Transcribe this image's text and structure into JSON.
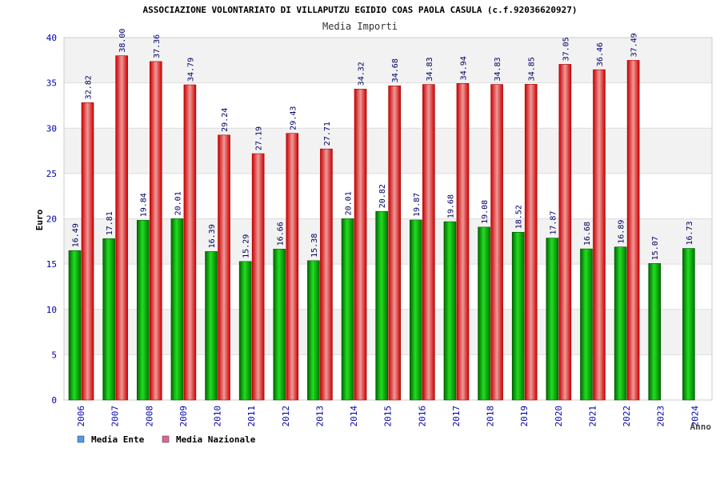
{
  "chart_data": {
    "type": "bar",
    "title": "ASSOCIAZIONE VOLONTARIATO DI VILLAPUTZU EGIDIO COAS PAOLA CASULA (c.f.92036620927)",
    "subtitle": "Media Importi",
    "xlabel": "Anno",
    "ylabel": "Euro",
    "ylim": [
      0,
      40
    ],
    "yticks": [
      "0",
      "5",
      "10",
      "15",
      "20",
      "25",
      "30",
      "35",
      "40"
    ],
    "grid": true,
    "legend_position": "bottom-left",
    "categories": [
      "2006",
      "2007",
      "2008",
      "2009",
      "2010",
      "2011",
      "2012",
      "2013",
      "2014",
      "2015",
      "2016",
      "2017",
      "2018",
      "2019",
      "2020",
      "2021",
      "2022",
      "2023",
      "2024"
    ],
    "series": [
      {
        "name": "Media Ente",
        "color": "#00aa00",
        "legend_color": "#5599ee",
        "values": [
          16.49,
          17.81,
          19.84,
          20.01,
          16.39,
          15.29,
          16.66,
          15.38,
          20.01,
          20.82,
          19.87,
          19.68,
          19.08,
          18.52,
          17.87,
          16.68,
          16.89,
          15.07,
          16.73
        ],
        "labels": [
          "16.49",
          "17.81",
          "19.84",
          "20.01",
          "16.39",
          "15.29",
          "16.66",
          "15.38",
          "20.01",
          "20.82",
          "19.87",
          "19.68",
          "19.08",
          "18.52",
          "17.87",
          "16.68",
          "16.89",
          "15.07",
          "16.73"
        ]
      },
      {
        "name": "Media Nazionale",
        "color": "#ee1111",
        "legend_color": "#dd6699",
        "values": [
          32.82,
          38.0,
          37.36,
          34.79,
          29.24,
          27.19,
          29.43,
          27.71,
          34.32,
          34.68,
          34.83,
          34.94,
          34.83,
          34.85,
          37.05,
          36.46,
          37.49,
          null,
          null
        ],
        "labels": [
          "32.82",
          "38.00",
          "37.36",
          "34.79",
          "29.24",
          "27.19",
          "29.43",
          "27.71",
          "34.32",
          "34.68",
          "34.83",
          "34.94",
          "34.83",
          "34.85",
          "37.05",
          "36.46",
          "37.49",
          "",
          ""
        ]
      }
    ]
  }
}
